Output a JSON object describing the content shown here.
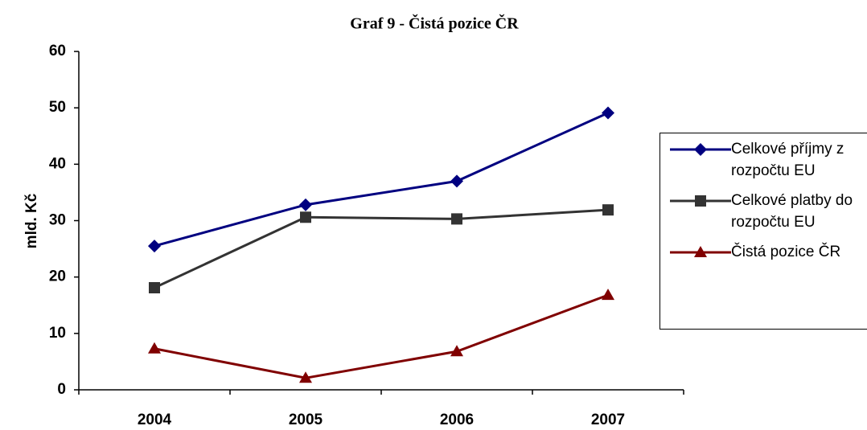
{
  "chart_data": {
    "type": "line",
    "title": "Graf 9 - Čistá pozice ČR",
    "y_label": "mld. Kč",
    "categories": [
      "2004",
      "2005",
      "2006",
      "2007"
    ],
    "series": [
      {
        "name": "Celkové příjmy z rozpočtu EU",
        "color": "#000080",
        "marker": "diamond",
        "values": [
          25.5,
          32.8,
          37.0,
          49.1
        ]
      },
      {
        "name": "Celkové platby do rozpočtu EU",
        "color": "#333333",
        "marker": "square",
        "values": [
          18.1,
          30.6,
          30.3,
          31.9
        ]
      },
      {
        "name": "Čistá pozice ČR",
        "color": "#800000",
        "marker": "triangle",
        "values": [
          7.3,
          2.1,
          6.8,
          16.8
        ]
      }
    ],
    "ylim": [
      0,
      60
    ],
    "yticks": [
      0,
      10,
      20,
      30,
      40,
      50,
      60
    ],
    "grid": false,
    "legend": "right"
  }
}
